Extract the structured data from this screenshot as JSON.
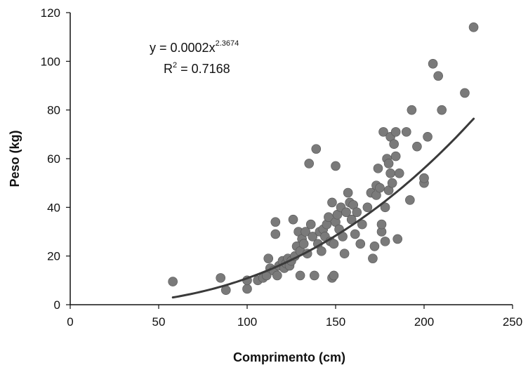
{
  "chart_data": {
    "type": "scatter",
    "xlabel": "Comprimento (cm)",
    "ylabel": "Peso (kg)",
    "xlim": [
      0,
      250
    ],
    "ylim": [
      0,
      120
    ],
    "xticks": [
      "0",
      "50",
      "100",
      "150",
      "200",
      "250"
    ],
    "yticks": [
      "0",
      "20",
      "40",
      "60",
      "80",
      "100",
      "120"
    ],
    "grid": false,
    "legend": "none",
    "marker_color": "#7a7a7a",
    "trend_color": "#3a3a3a",
    "equation": {
      "prefix": "y = 0.0002x",
      "exponent": "2.3674",
      "r_prefix": "R",
      "r_exponent": "2",
      "r_value": " = 0.7168"
    },
    "trendline": {
      "model": "power",
      "a": 0.0002,
      "b": 2.3674,
      "x_range": [
        58,
        228
      ]
    },
    "points": [
      [
        58,
        9.5
      ],
      [
        85,
        11
      ],
      [
        88,
        6
      ],
      [
        100,
        6.5
      ],
      [
        100,
        10
      ],
      [
        106,
        10
      ],
      [
        109,
        11
      ],
      [
        111,
        12
      ],
      [
        112,
        19
      ],
      [
        113,
        15
      ],
      [
        115,
        14
      ],
      [
        116,
        29
      ],
      [
        116,
        34
      ],
      [
        117,
        12
      ],
      [
        118,
        16
      ],
      [
        120,
        18
      ],
      [
        121,
        15
      ],
      [
        122,
        17
      ],
      [
        123,
        19
      ],
      [
        124,
        16
      ],
      [
        125,
        18
      ],
      [
        126,
        35
      ],
      [
        127,
        20
      ],
      [
        128,
        24
      ],
      [
        129,
        30
      ],
      [
        130,
        12
      ],
      [
        130,
        22
      ],
      [
        131,
        27
      ],
      [
        132,
        25
      ],
      [
        133,
        30
      ],
      [
        134,
        21
      ],
      [
        135,
        58
      ],
      [
        136,
        33
      ],
      [
        137,
        28
      ],
      [
        138,
        12
      ],
      [
        139,
        64
      ],
      [
        140,
        25
      ],
      [
        141,
        30
      ],
      [
        142,
        22
      ],
      [
        143,
        31
      ],
      [
        144,
        28
      ],
      [
        145,
        33
      ],
      [
        146,
        36
      ],
      [
        147,
        26
      ],
      [
        148,
        42
      ],
      [
        148,
        11
      ],
      [
        149,
        12
      ],
      [
        149,
        25
      ],
      [
        150,
        57
      ],
      [
        150,
        34
      ],
      [
        151,
        37
      ],
      [
        152,
        31
      ],
      [
        153,
        40
      ],
      [
        154,
        28
      ],
      [
        155,
        21
      ],
      [
        156,
        38
      ],
      [
        157,
        46
      ],
      [
        158,
        42
      ],
      [
        159,
        35
      ],
      [
        160,
        41
      ],
      [
        161,
        29
      ],
      [
        162,
        38
      ],
      [
        164,
        25
      ],
      [
        165,
        33
      ],
      [
        168,
        40
      ],
      [
        170,
        46
      ],
      [
        171,
        19
      ],
      [
        172,
        24
      ],
      [
        173,
        45
      ],
      [
        173,
        49
      ],
      [
        174,
        56
      ],
      [
        175,
        48
      ],
      [
        176,
        30
      ],
      [
        176,
        33
      ],
      [
        177,
        71
      ],
      [
        178,
        40
      ],
      [
        178,
        26
      ],
      [
        179,
        60
      ],
      [
        180,
        58
      ],
      [
        180,
        47
      ],
      [
        181,
        69
      ],
      [
        181,
        54
      ],
      [
        182,
        50
      ],
      [
        183,
        66
      ],
      [
        184,
        61
      ],
      [
        184,
        71
      ],
      [
        185,
        27
      ],
      [
        186,
        54
      ],
      [
        190,
        71
      ],
      [
        192,
        43
      ],
      [
        193,
        80
      ],
      [
        196,
        65
      ],
      [
        200,
        50
      ],
      [
        200,
        52
      ],
      [
        202,
        69
      ],
      [
        205,
        99
      ],
      [
        208,
        94
      ],
      [
        210,
        80
      ],
      [
        223,
        87
      ],
      [
        228,
        114
      ]
    ]
  }
}
